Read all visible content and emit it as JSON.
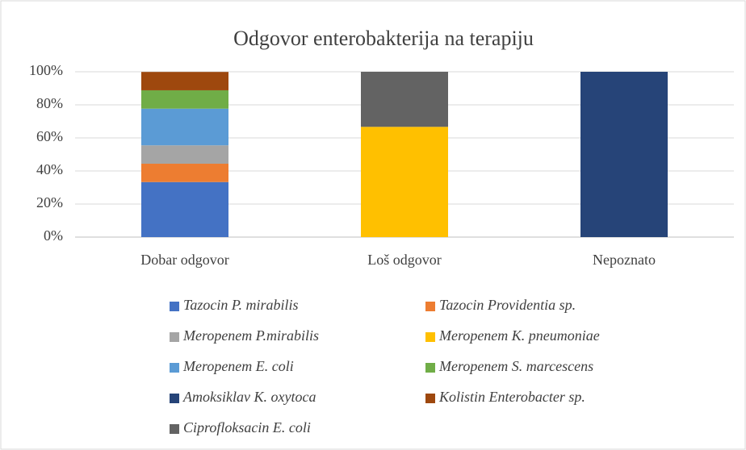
{
  "chart_data": {
    "type": "stacked_bar",
    "title": "Odgovor enterobakterija na terapiju",
    "categories": [
      "Dobar odgovor",
      "Loš odgovor",
      "Nepoznato"
    ],
    "series": [
      {
        "name": "Tazocin P. mirabilis",
        "color": "#4472c4",
        "values": [
          33.3,
          null,
          null
        ]
      },
      {
        "name": "Tazocin Providentia sp.",
        "color": "#ed7d31",
        "values": [
          11.1,
          null,
          null
        ]
      },
      {
        "name": "Meropenem P.mirabilis",
        "color": "#a5a5a5",
        "values": [
          11.1,
          null,
          null
        ]
      },
      {
        "name": "Meropenem K. pneumoniae",
        "color": "#ffc000",
        "values": [
          null,
          66.7,
          null
        ]
      },
      {
        "name": "Meropenem E. coli",
        "color": "#5b9bd5",
        "values": [
          22.2,
          null,
          null
        ]
      },
      {
        "name": "Meropenem S. marcescens",
        "color": "#70ad47",
        "values": [
          11.1,
          null,
          null
        ]
      },
      {
        "name": "Amoksiklav K. oxytoca",
        "color": "#264478",
        "values": [
          null,
          null,
          100
        ]
      },
      {
        "name": "Kolistin Enterobacter sp.",
        "color": "#9e480e",
        "values": [
          11.1,
          null,
          null
        ]
      },
      {
        "name": "Ciprofloksacin E. coli",
        "color": "#636363",
        "values": [
          null,
          33.3,
          null
        ]
      }
    ],
    "ylim": [
      0,
      100
    ],
    "yticks": [
      {
        "value": 0,
        "label": "0%"
      },
      {
        "value": 20,
        "label": "20%"
      },
      {
        "value": 40,
        "label": "40%"
      },
      {
        "value": 60,
        "label": "60%"
      },
      {
        "value": 80,
        "label": "80%"
      },
      {
        "value": 100,
        "label": "100%"
      }
    ],
    "grid": true,
    "legend": "bottom"
  }
}
